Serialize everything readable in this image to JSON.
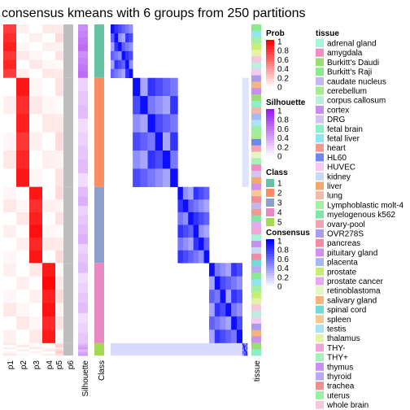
{
  "title": "consensus kmeans with 6 groups from 250 partitions",
  "chart_data": {
    "type": "heatmap",
    "title": "consensus kmeans with 6 groups from 250 partitions",
    "prob_columns": [
      "p1",
      "p2",
      "p3",
      "p4",
      "p5",
      "p6"
    ],
    "annotation_columns": [
      "Silhouette",
      "Class"
    ],
    "right_annotation": "tissue",
    "groups": [
      {
        "class": 1,
        "size": 26
      },
      {
        "class": 2,
        "size": 53
      },
      {
        "class": 3,
        "size": 37
      },
      {
        "class": 4,
        "size": 39
      },
      {
        "class": 5,
        "size": 6
      }
    ],
    "legends": {
      "prob": {
        "title": "Prob",
        "ticks": [
          "1",
          "0.8",
          "0.6",
          "0.4",
          "0.2",
          "0"
        ],
        "colors": [
          "#ff0000",
          "#ffffff"
        ]
      },
      "silhouette": {
        "title": "Silhouette",
        "ticks": [
          "1",
          "0.8",
          "0.6",
          "0.4",
          "0.2",
          "0"
        ],
        "colors": [
          "#9a1bf0",
          "#ffffff"
        ]
      },
      "class": {
        "title": "Class",
        "items": [
          {
            "label": "1",
            "color": "#66c2a5"
          },
          {
            "label": "2",
            "color": "#fc8d62"
          },
          {
            "label": "3",
            "color": "#8da0cb"
          },
          {
            "label": "4",
            "color": "#e78ac3"
          },
          {
            "label": "5",
            "color": "#a6d854"
          }
        ]
      },
      "consensus": {
        "title": "Consensus",
        "ticks": [
          "1",
          "0.8",
          "0.6",
          "0.4",
          "0.2",
          "0"
        ],
        "colors": [
          "#0000ff",
          "#ffffff"
        ]
      },
      "tissue": {
        "title": "tissue",
        "items": [
          {
            "label": "adrenal gland",
            "color": "#a6f5d9"
          },
          {
            "label": "amygdala",
            "color": "#f08dc3"
          },
          {
            "label": "Burkitt's Daudi",
            "color": "#9bde74"
          },
          {
            "label": "Burkitt's Raji",
            "color": "#8bea8c"
          },
          {
            "label": "caudate nucleus",
            "color": "#c5b6f2"
          },
          {
            "label": "cerebellum",
            "color": "#a7ed8e"
          },
          {
            "label": "corpus callosum",
            "color": "#b9f0dd"
          },
          {
            "label": "cortex",
            "color": "#c58ff0"
          },
          {
            "label": "DRG",
            "color": "#d3c3f5"
          },
          {
            "label": "fetal brain",
            "color": "#89f0c8"
          },
          {
            "label": "fetal liver",
            "color": "#8fe6f0"
          },
          {
            "label": "heart",
            "color": "#f29a8f"
          },
          {
            "label": "HL60",
            "color": "#6f88f0"
          },
          {
            "label": "HUVEC",
            "color": "#f5c9f0"
          },
          {
            "label": "kidney",
            "color": "#c7d9f5"
          },
          {
            "label": "liver",
            "color": "#f5a86b"
          },
          {
            "label": "lung",
            "color": "#f0b9a9"
          },
          {
            "label": "Lymphoblastic molt-4",
            "color": "#a3f0a0"
          },
          {
            "label": "myelogenous k562",
            "color": "#7ee6a6"
          },
          {
            "label": "ovary-pool",
            "color": "#f5a3b3"
          },
          {
            "label": "OVR278S",
            "color": "#a99cf0"
          },
          {
            "label": "pancreas",
            "color": "#f08ca5"
          },
          {
            "label": "pituitary gland",
            "color": "#d18ff0"
          },
          {
            "label": "placenta",
            "color": "#a7b9f2"
          },
          {
            "label": "prostate",
            "color": "#c6f075"
          },
          {
            "label": "prostate cancer",
            "color": "#e6a9f0"
          },
          {
            "label": "retinoblastoma",
            "color": "#e3f5c3"
          },
          {
            "label": "salivary gland",
            "color": "#f5b37d"
          },
          {
            "label": "spinal cord",
            "color": "#75d9d6"
          },
          {
            "label": "spleen",
            "color": "#f5c98f"
          },
          {
            "label": "testis",
            "color": "#a9e3f5"
          },
          {
            "label": "thalamus",
            "color": "#e6f0a9"
          },
          {
            "label": "THY-",
            "color": "#f0a6d6"
          },
          {
            "label": "THY+",
            "color": "#a6f0b9"
          },
          {
            "label": "thymus",
            "color": "#c98ff5"
          },
          {
            "label": "thyroid",
            "color": "#b9a9f5"
          },
          {
            "label": "trachea",
            "color": "#f08f8f"
          },
          {
            "label": "uterus",
            "color": "#9af0a3"
          },
          {
            "label": "whole brain",
            "color": "#f5c6de"
          }
        ]
      }
    }
  }
}
